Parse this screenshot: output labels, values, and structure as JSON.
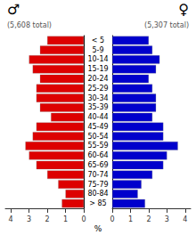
{
  "chart_data": {
    "type": "bar",
    "orientation": "horizontal",
    "categories": [
      "> 85",
      "80-84",
      "75-79",
      "70-74",
      "65-69",
      "60-64",
      "55-59",
      "50-54",
      "45-49",
      "40-44",
      "35-39",
      "30-34",
      "25-29",
      "20-24",
      "15-19",
      "10-14",
      "5-9",
      "< 5"
    ],
    "series": [
      {
        "name": "♂",
        "color": "#dd0000",
        "values": [
          1.2,
          1.0,
          1.4,
          2.0,
          2.6,
          3.0,
          3.2,
          2.8,
          2.6,
          1.8,
          2.4,
          2.6,
          2.6,
          2.4,
          2.8,
          3.0,
          2.4,
          2.0
        ]
      },
      {
        "name": "♀",
        "color": "#0000cc",
        "values": [
          1.8,
          1.4,
          1.6,
          2.2,
          2.8,
          3.0,
          3.6,
          2.8,
          2.8,
          2.2,
          2.4,
          2.4,
          2.2,
          2.0,
          2.4,
          2.6,
          2.2,
          2.0
        ]
      }
    ],
    "xlabel": "%",
    "xlim": [
      0,
      4.3
    ],
    "xticks": [
      0,
      1,
      2,
      3,
      4
    ],
    "grid": false,
    "annotations": [
      "(5,608 total)",
      "(5,307 total)"
    ]
  }
}
